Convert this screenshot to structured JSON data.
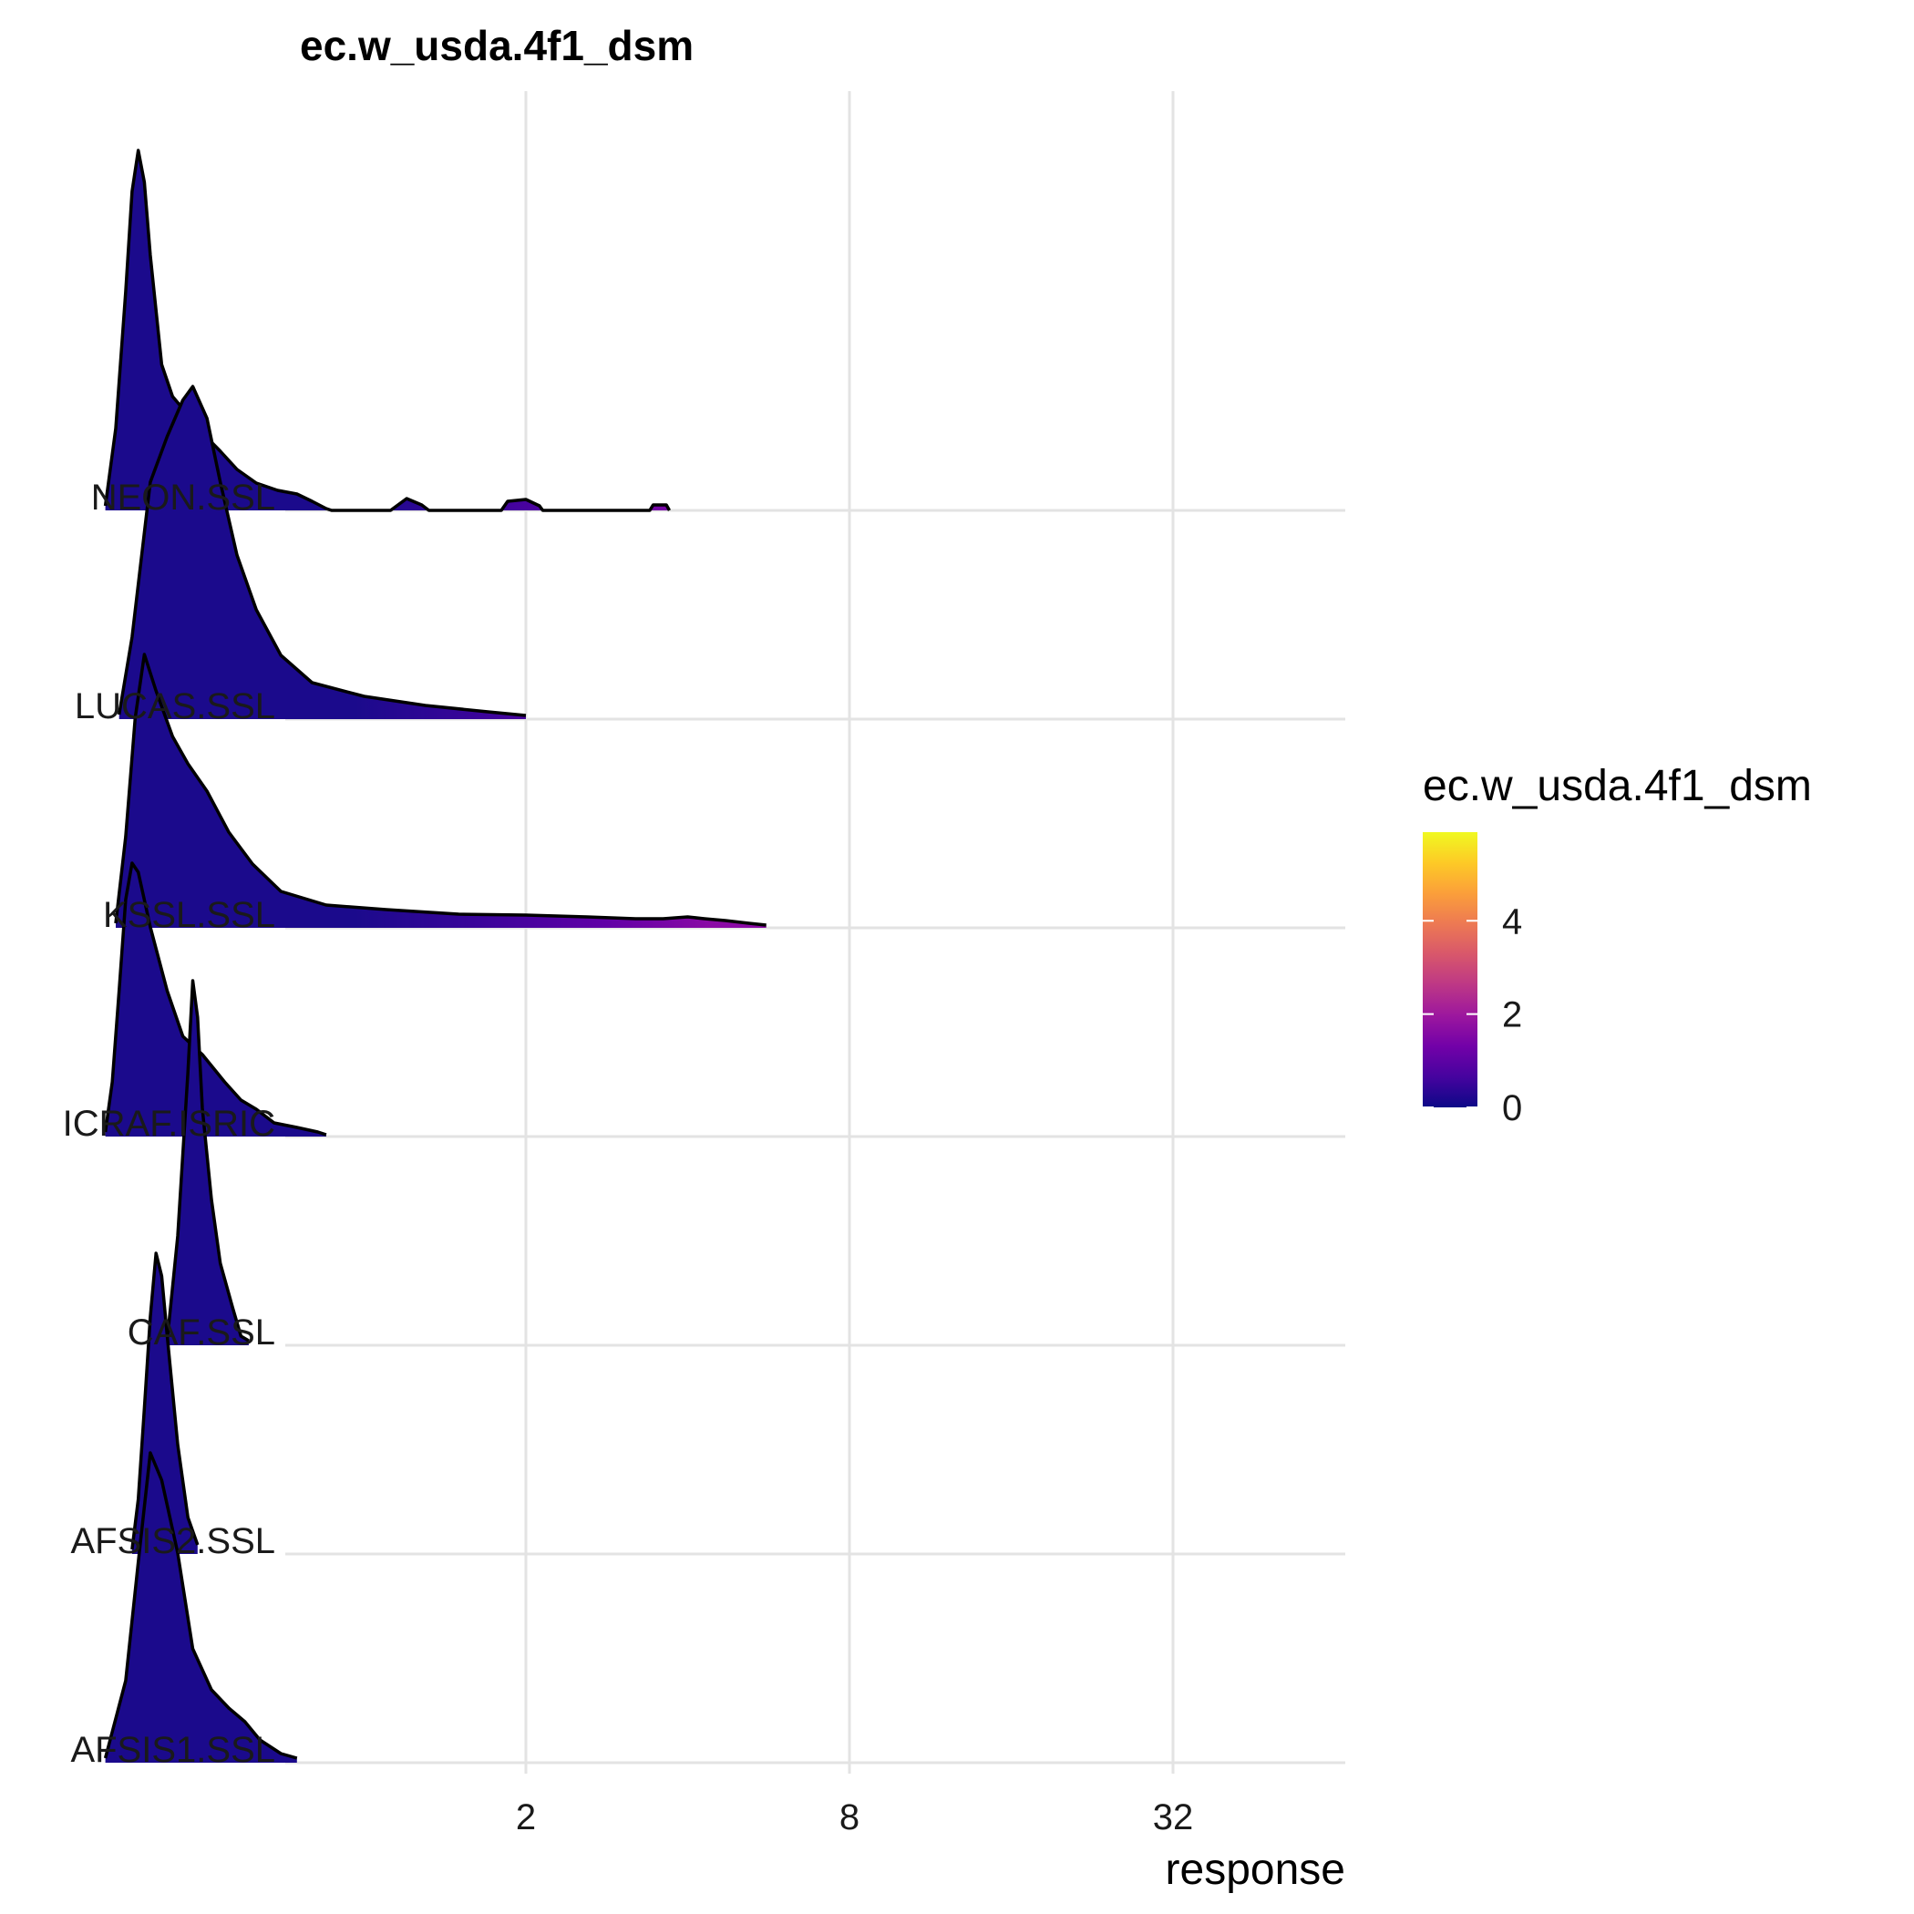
{
  "chart_data": {
    "type": "ridgeline",
    "title": "ec.w_usda.4f1_dsm",
    "xlabel": "response",
    "ylabel": "",
    "x_scale": "log2",
    "x_ticks": [
      2,
      8,
      32
    ],
    "x_tick_labels": [
      "2",
      "8",
      "32"
    ],
    "xlim": [
      0.3,
      70
    ],
    "grid": true,
    "legend": {
      "title": "ec.w_usda.4f1_dsm",
      "position": "right",
      "colormap": "plasma",
      "ticks": [
        0,
        2,
        4
      ],
      "tick_labels": [
        "0",
        "2",
        "4"
      ],
      "range": [
        0,
        5.9
      ]
    },
    "colors": {
      "plasma": [
        "#0d0887",
        "#46039f",
        "#7201a8",
        "#9c179e",
        "#bd3786",
        "#d8576b",
        "#ed7953",
        "#fb9f3a",
        "#fdca26",
        "#f0f921"
      ],
      "grid": "#e3e3e3",
      "outline": "#000000"
    },
    "series": [
      {
        "name": "AFSIS1.SSL",
        "points": [
          [
            0.33,
            0.05
          ],
          [
            0.36,
            0.9
          ],
          [
            0.38,
            2.2
          ],
          [
            0.4,
            3.4
          ],
          [
            0.42,
            3.1
          ],
          [
            0.45,
            2.3
          ],
          [
            0.48,
            1.25
          ],
          [
            0.52,
            0.8
          ],
          [
            0.56,
            0.6
          ],
          [
            0.6,
            0.45
          ],
          [
            0.64,
            0.25
          ],
          [
            0.7,
            0.1
          ],
          [
            0.75,
            0.05
          ]
        ]
      },
      {
        "name": "AFSIS2.SSL",
        "points": [
          [
            0.37,
            0.05
          ],
          [
            0.38,
            0.6
          ],
          [
            0.39,
            1.6
          ],
          [
            0.4,
            2.6
          ],
          [
            0.41,
            3.3
          ],
          [
            0.42,
            3.05
          ],
          [
            0.43,
            2.4
          ],
          [
            0.45,
            1.2
          ],
          [
            0.47,
            0.4
          ],
          [
            0.49,
            0.1
          ]
        ]
      },
      {
        "name": "CAF.SSL",
        "points": [
          [
            0.43,
            0.05
          ],
          [
            0.45,
            1.2
          ],
          [
            0.47,
            3.0
          ],
          [
            0.48,
            4.0
          ],
          [
            0.49,
            3.6
          ],
          [
            0.5,
            2.6
          ],
          [
            0.52,
            1.6
          ],
          [
            0.54,
            0.9
          ],
          [
            0.57,
            0.4
          ],
          [
            0.59,
            0.1
          ],
          [
            0.61,
            0.05
          ]
        ]
      },
      {
        "name": "ICRAF.ISRIC",
        "points": [
          [
            0.33,
            0.05
          ],
          [
            0.34,
            0.6
          ],
          [
            0.35,
            1.6
          ],
          [
            0.36,
            2.6
          ],
          [
            0.37,
            3.0
          ],
          [
            0.38,
            2.9
          ],
          [
            0.4,
            2.3
          ],
          [
            0.43,
            1.6
          ],
          [
            0.46,
            1.1
          ],
          [
            0.5,
            0.9
          ],
          [
            0.55,
            0.6
          ],
          [
            0.59,
            0.4
          ],
          [
            0.63,
            0.3
          ],
          [
            0.68,
            0.15
          ],
          [
            0.75,
            0.1
          ],
          [
            0.82,
            0.05
          ],
          [
            0.85,
            0.02
          ]
        ]
      },
      {
        "name": "KSSL.SSL",
        "points": [
          [
            0.345,
            0.05
          ],
          [
            0.36,
            1.0
          ],
          [
            0.375,
            2.3
          ],
          [
            0.39,
            3.0
          ],
          [
            0.41,
            2.6
          ],
          [
            0.44,
            2.1
          ],
          [
            0.47,
            1.8
          ],
          [
            0.51,
            1.5
          ],
          [
            0.56,
            1.05
          ],
          [
            0.62,
            0.7
          ],
          [
            0.7,
            0.4
          ],
          [
            0.85,
            0.25
          ],
          [
            1.1,
            0.2
          ],
          [
            1.5,
            0.15
          ],
          [
            2.0,
            0.14
          ],
          [
            2.6,
            0.12
          ],
          [
            3.2,
            0.1
          ],
          [
            3.6,
            0.1
          ],
          [
            4.0,
            0.12
          ],
          [
            4.3,
            0.1
          ],
          [
            4.7,
            0.08
          ],
          [
            5.2,
            0.05
          ],
          [
            5.6,
            0.03
          ]
        ]
      },
      {
        "name": "LUCAS.SSL",
        "points": [
          [
            0.35,
            0.05
          ],
          [
            0.37,
            0.9
          ],
          [
            0.4,
            2.6
          ],
          [
            0.43,
            3.1
          ],
          [
            0.46,
            3.5
          ],
          [
            0.48,
            3.65
          ],
          [
            0.51,
            3.3
          ],
          [
            0.54,
            2.6
          ],
          [
            0.58,
            1.8
          ],
          [
            0.63,
            1.2
          ],
          [
            0.7,
            0.7
          ],
          [
            0.8,
            0.4
          ],
          [
            1.0,
            0.25
          ],
          [
            1.3,
            0.15
          ],
          [
            1.7,
            0.08
          ],
          [
            2.0,
            0.04
          ]
        ]
      },
      {
        "name": "NEON.SSL",
        "points": [
          [
            0.33,
            0.05
          ],
          [
            0.345,
            0.9
          ],
          [
            0.36,
            2.4
          ],
          [
            0.37,
            3.5
          ],
          [
            0.38,
            3.95
          ],
          [
            0.39,
            3.6
          ],
          [
            0.4,
            2.8
          ],
          [
            0.42,
            1.6
          ],
          [
            0.44,
            1.25
          ],
          [
            0.47,
            1.05
          ],
          [
            0.5,
            0.85
          ],
          [
            0.54,
            0.65
          ],
          [
            0.58,
            0.45
          ],
          [
            0.63,
            0.3
          ],
          [
            0.69,
            0.22
          ],
          [
            0.75,
            0.18
          ],
          [
            0.8,
            0.1
          ],
          [
            0.85,
            0.02
          ],
          [
            0.87,
            0.0
          ],
          [
            1.12,
            0.0
          ],
          [
            1.2,
            0.13
          ],
          [
            1.28,
            0.06
          ],
          [
            1.32,
            0.0
          ],
          [
            1.8,
            0.0
          ],
          [
            1.85,
            0.1
          ],
          [
            2.0,
            0.12
          ],
          [
            2.12,
            0.05
          ],
          [
            2.15,
            0.0
          ],
          [
            3.4,
            0.0
          ],
          [
            3.45,
            0.06
          ],
          [
            3.65,
            0.06
          ],
          [
            3.7,
            0.0
          ]
        ]
      }
    ]
  }
}
